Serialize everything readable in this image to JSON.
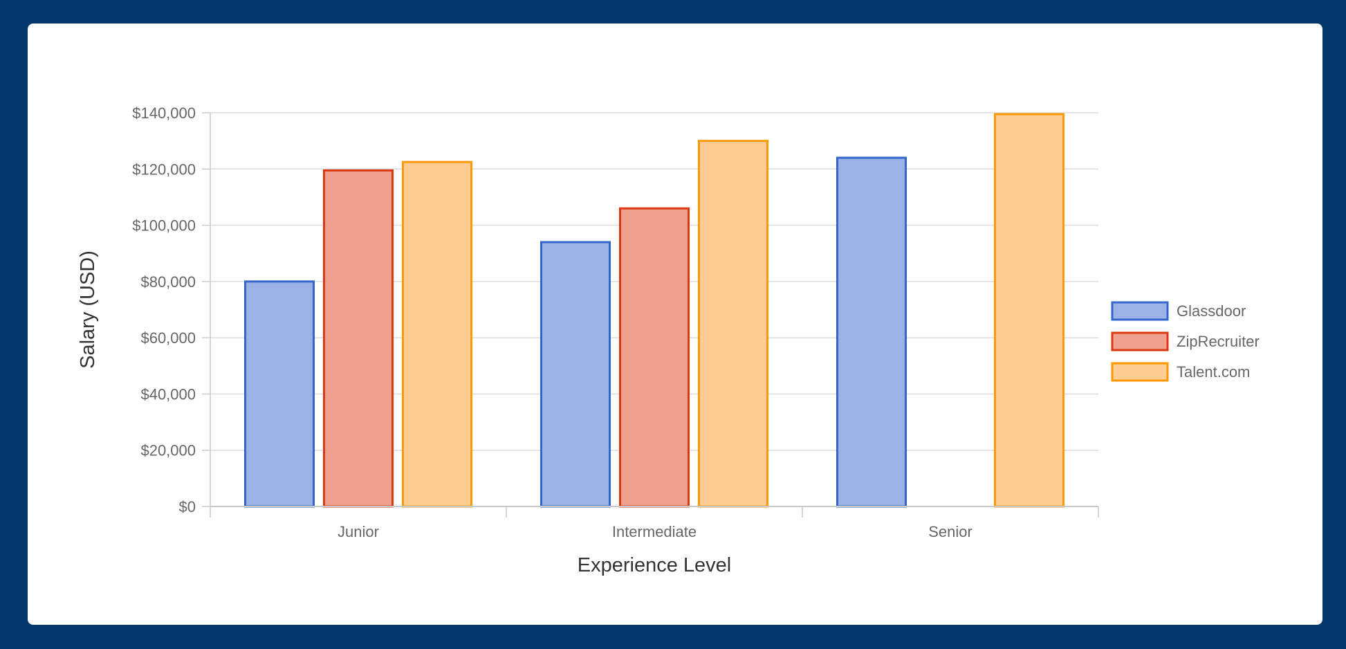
{
  "chart_data": {
    "type": "bar",
    "title": "",
    "xlabel": "Experience Level",
    "ylabel": "Salary (USD)",
    "categories": [
      "Junior",
      "Intermediate",
      "Senior"
    ],
    "ylim": [
      0,
      140000
    ],
    "yticks": [
      0,
      20000,
      40000,
      60000,
      80000,
      100000,
      120000,
      140000
    ],
    "ytick_labels": [
      "$0",
      "$20,000",
      "$40,000",
      "$60,000",
      "$80,000",
      "$100,000",
      "$120,000",
      "$140,000"
    ],
    "grid": true,
    "legend_position": "right",
    "series": [
      {
        "name": "Glassdoor",
        "values": [
          80000,
          94000,
          124000
        ],
        "fill": "#9bb2e6",
        "stroke": "#3366cc"
      },
      {
        "name": "ZipRecruiter",
        "values": [
          119500,
          106000,
          null
        ],
        "fill": "#f0a08e",
        "stroke": "#dc3912"
      },
      {
        "name": "Talent.com",
        "values": [
          122500,
          130000,
          139500
        ],
        "fill": "#ffcc91",
        "stroke": "#ff9900"
      }
    ]
  }
}
